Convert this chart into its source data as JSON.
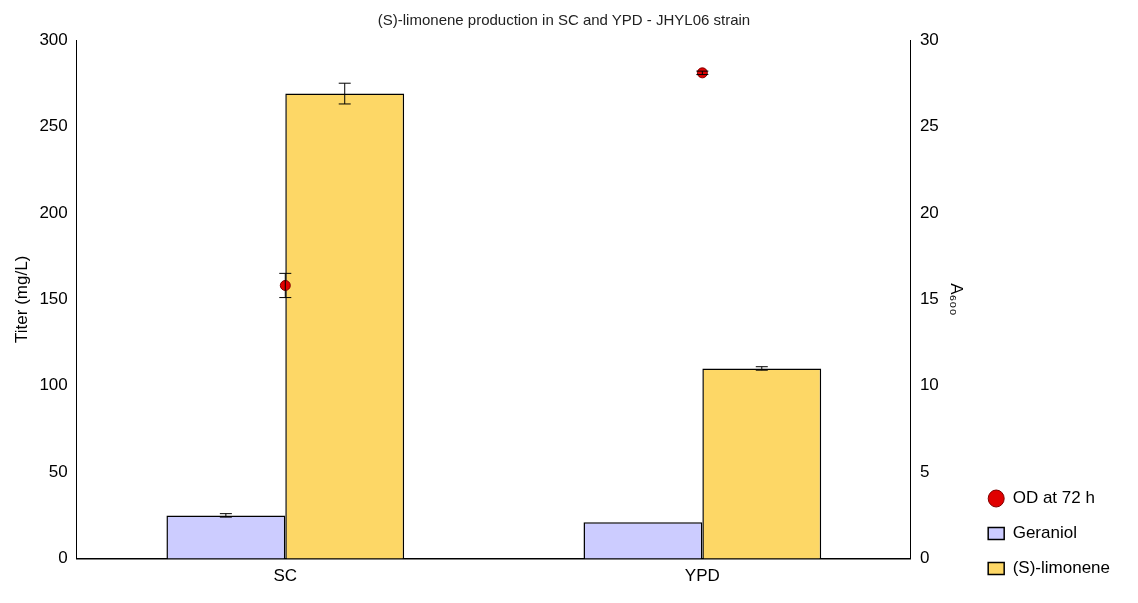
{
  "chart_data": {
    "type": "bar",
    "title": "(S)-limonene production in SC and YPD - JHYL06 strain",
    "ylabel": "Titer (mg/L)",
    "y2label": "A₆₀₀",
    "categories": [
      "SC",
      "YPD"
    ],
    "series": [
      {
        "name": "OD at 72 h",
        "type": "scatter",
        "axis": "y2",
        "marker": "circle",
        "color": "#e00000",
        "values": [
          15.8,
          28.1
        ],
        "errors": [
          0.7,
          0.1
        ]
      },
      {
        "name": "Geraniol",
        "color": "#ccccff",
        "values": [
          25,
          21
        ],
        "errors": [
          1,
          null
        ]
      },
      {
        "name": "(S)-limonene",
        "color": "#fdd766",
        "values": [
          269,
          110
        ],
        "errors": [
          6,
          1
        ]
      }
    ],
    "ylim": [
      0,
      300
    ],
    "yticks": [
      0,
      50,
      100,
      150,
      200,
      250,
      300
    ],
    "y2lim": [
      0,
      30
    ],
    "y2ticks": [
      0,
      5,
      10,
      15,
      20,
      25,
      30
    ],
    "legend": "right"
  }
}
